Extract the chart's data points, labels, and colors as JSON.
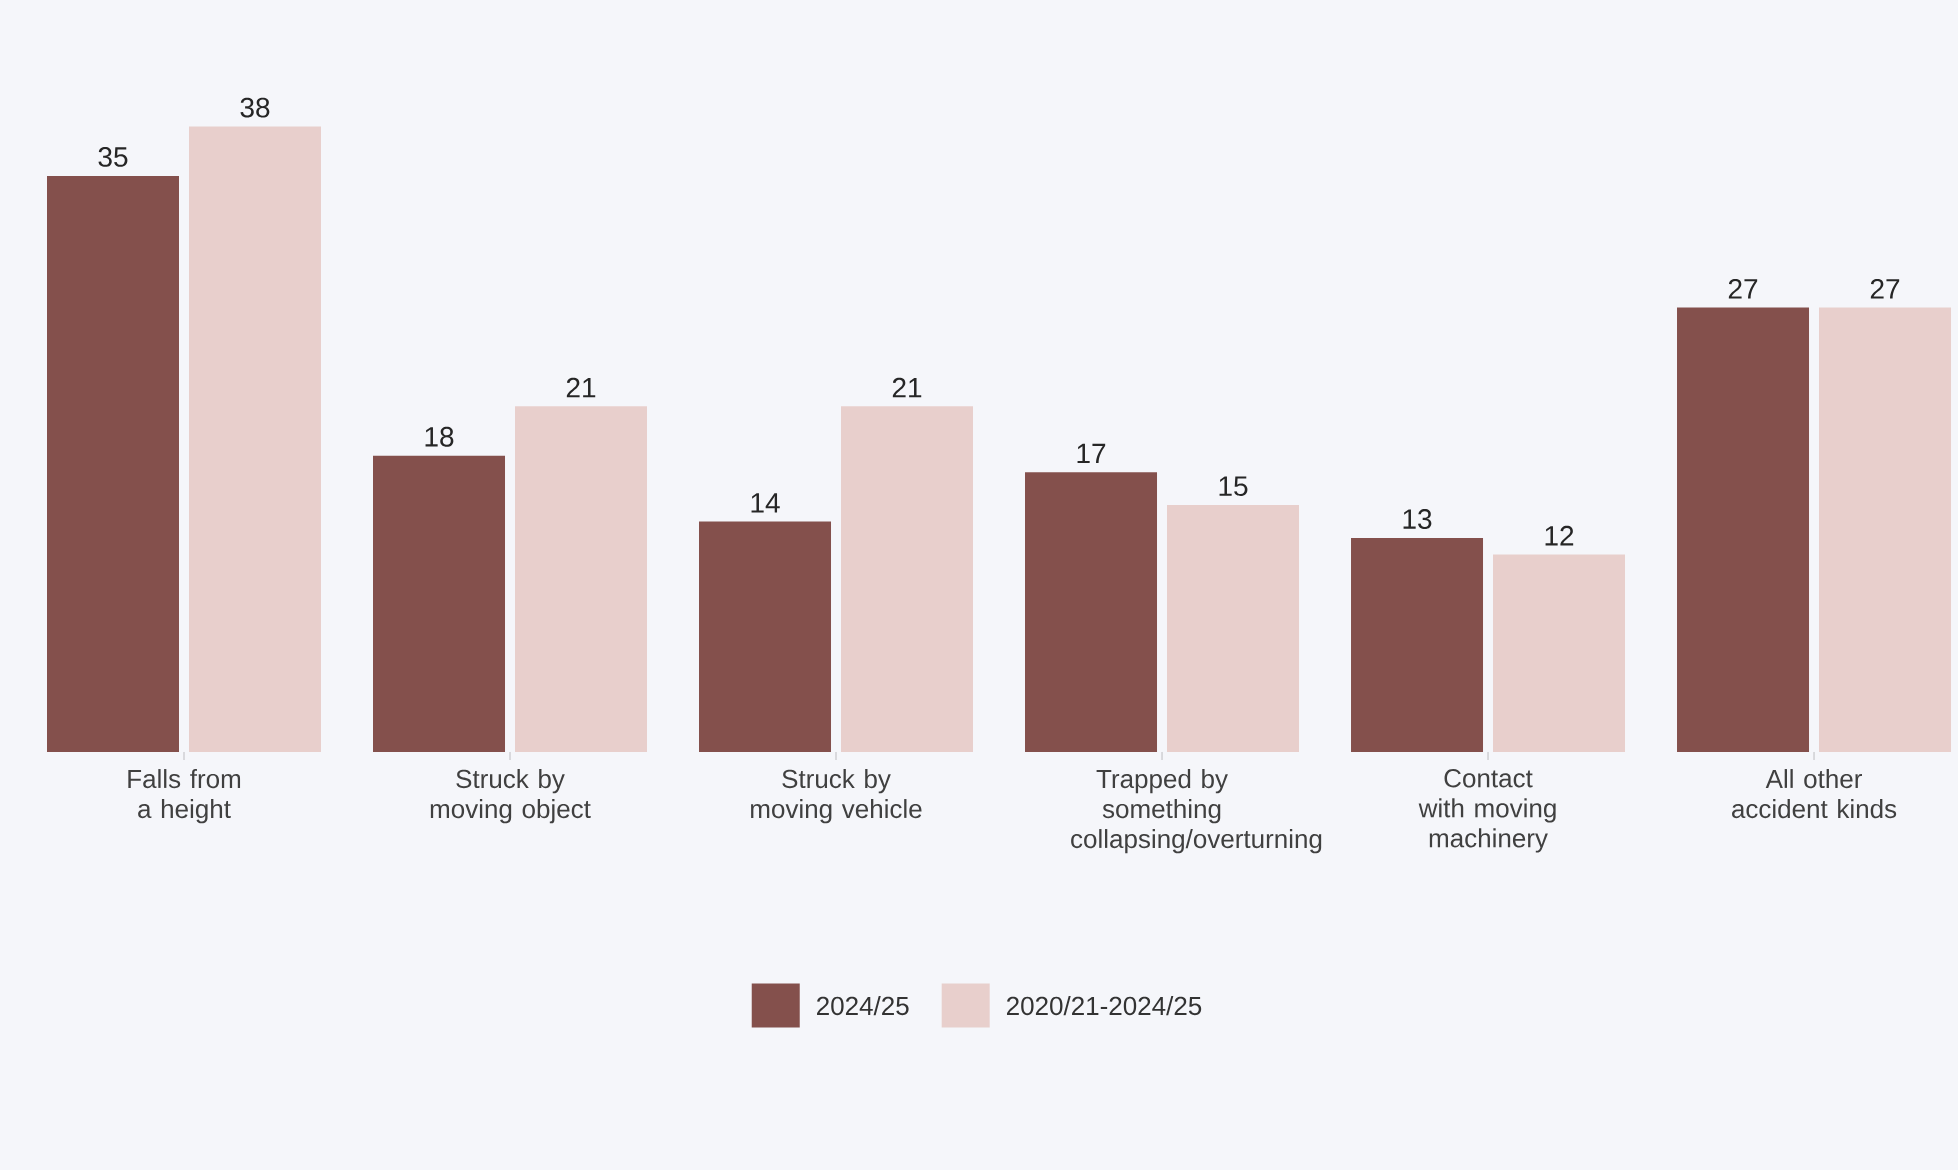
{
  "chart_data": {
    "type": "bar",
    "categories": [
      "Falls from a height",
      "Struck by moving object",
      "Struck by moving vehicle",
      "Trapped by something collapsing/overturning",
      "Contact with moving machinery",
      "All other accident kinds"
    ],
    "series": [
      {
        "name": "2024/25",
        "color": "#84504c",
        "values": [
          35,
          18,
          14,
          17,
          13,
          27
        ]
      },
      {
        "name": "2020/21-2024/25",
        "color": "#e8cfcc",
        "values": [
          38,
          21,
          21,
          15,
          12,
          27
        ]
      }
    ],
    "data_labels": true,
    "legend": "bottom"
  }
}
